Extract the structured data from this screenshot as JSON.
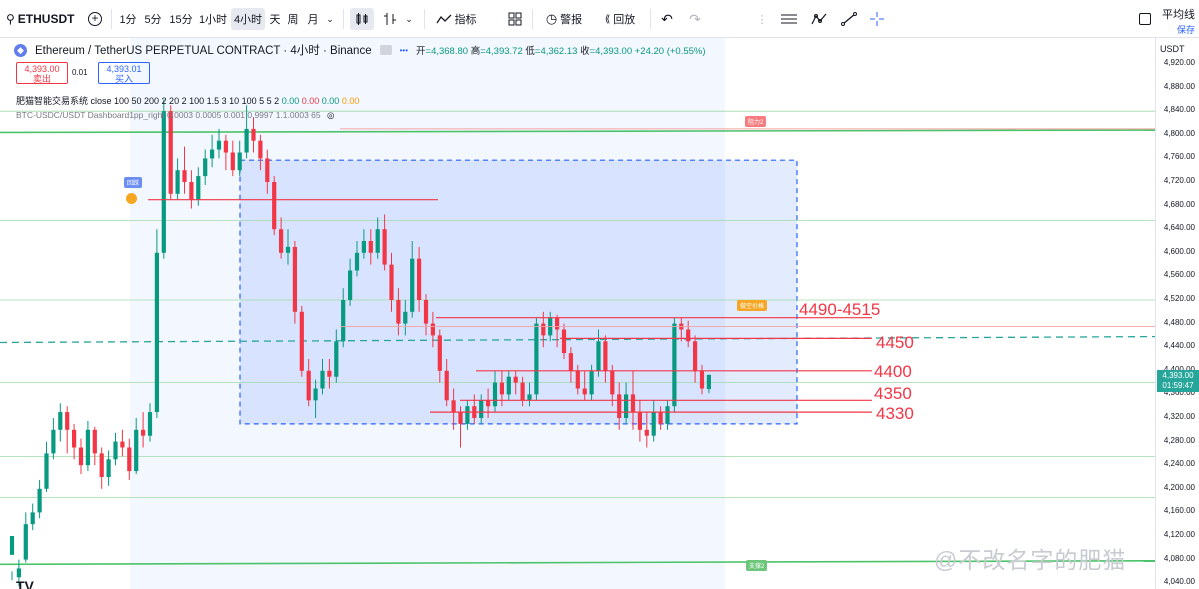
{
  "toolbar": {
    "symbol": "ETHUSDT",
    "intervals": [
      "1分",
      "5分",
      "15分",
      "1小时",
      "4小时",
      "天",
      "周",
      "月"
    ],
    "active_interval": "4小时",
    "indicators_label": "指标",
    "alert_label": "警报",
    "replay_label": "回放",
    "avg_line_label": "平均线",
    "save_label": "保存"
  },
  "legend": {
    "title": "Ethereum / TetherUS PERPETUAL CONTRACT · 4小时 · Binance",
    "open_label": "开",
    "open": "=4,368.80",
    "high_label": "高",
    "high": "=4,393.72",
    "low_label": "低",
    "low": "=4,362.13",
    "close_label": "收",
    "close": "=4,393.00",
    "change": "+24.20 (+0.55%)"
  },
  "trade": {
    "sell_price": "4,393.00",
    "sell_label": "卖出",
    "spread": "0.01",
    "buy_price": "4,393.01",
    "buy_label": "买入"
  },
  "indicator1": {
    "text": "肥猫智能交易系统 close 100 50 200 2 20 2 100 1.5 3 10 100 5 5 2",
    "v1": "0.00",
    "v2": "0.00",
    "v3": "0.00",
    "v4": "0.00"
  },
  "indicator2": {
    "text": "BTC-USDC/USDT Dashboard1pp_right 0.0003 0.0005 0.001 0.9997 1.1.0003 65"
  },
  "levels": [
    "4490-4515",
    "4450",
    "4400",
    "4350",
    "4330"
  ],
  "tags": {
    "resistance": "阻力2",
    "short": "做空价格",
    "support": "支撑2",
    "rebound": "回踩"
  },
  "price_axis": {
    "unit": "USDT",
    "ticks": [
      "4,920.00",
      "4,880.00",
      "4,840.00",
      "4,800.00",
      "4,760.00",
      "4,720.00",
      "4,680.00",
      "4,640.00",
      "4,600.00",
      "4,560.00",
      "4,520.00",
      "4,480.00",
      "4,440.00",
      "4,400.00",
      "4,360.00",
      "4,320.00",
      "4,280.00",
      "4,240.00",
      "4,200.00",
      "4,160.00",
      "4,120.00",
      "4,080.00",
      "4,040.00"
    ],
    "current_price": "4,393.00",
    "countdown": "01:59:47"
  },
  "watermark": "@不改名字的肥猫",
  "logo": "TV",
  "colors": {
    "up": "#089981",
    "down": "#f23645",
    "box": "#2962ff",
    "accent": "#2962ff"
  },
  "candles": [
    [
      4088,
      4120,
      4060,
      4045
    ],
    [
      4050,
      4065,
      4080,
      4035
    ],
    [
      4080,
      4140,
      4160,
      4075
    ],
    [
      4140,
      4160,
      4175,
      4130
    ],
    [
      4160,
      4200,
      4215,
      4150
    ],
    [
      4200,
      4260,
      4280,
      4195
    ],
    [
      4260,
      4300,
      4320,
      4250
    ],
    [
      4300,
      4330,
      4345,
      4280
    ],
    [
      4330,
      4300,
      4340,
      4260
    ],
    [
      4300,
      4270,
      4310,
      4250
    ],
    [
      4270,
      4240,
      4285,
      4225
    ],
    [
      4240,
      4300,
      4315,
      4230
    ],
    [
      4300,
      4260,
      4305,
      4240
    ],
    [
      4260,
      4220,
      4270,
      4200
    ],
    [
      4220,
      4250,
      4265,
      4205
    ],
    [
      4250,
      4280,
      4295,
      4240
    ],
    [
      4280,
      4270,
      4300,
      4255
    ],
    [
      4270,
      4230,
      4285,
      4215
    ],
    [
      4230,
      4300,
      4320,
      4225
    ],
    [
      4300,
      4290,
      4330,
      4270
    ],
    [
      4290,
      4330,
      4345,
      4280
    ],
    [
      4330,
      4600,
      4640,
      4320
    ],
    [
      4600,
      4840,
      4860,
      4590
    ],
    [
      4840,
      4700,
      4850,
      4690
    ],
    [
      4700,
      4740,
      4760,
      4690
    ],
    [
      4740,
      4720,
      4780,
      4700
    ],
    [
      4720,
      4690,
      4740,
      4675
    ],
    [
      4690,
      4730,
      4745,
      4680
    ],
    [
      4730,
      4760,
      4775,
      4715
    ],
    [
      4760,
      4775,
      4800,
      4745
    ],
    [
      4775,
      4790,
      4810,
      4760
    ],
    [
      4790,
      4770,
      4800,
      4740
    ],
    [
      4770,
      4740,
      4790,
      4730
    ],
    [
      4740,
      4770,
      4790,
      4730
    ],
    [
      4770,
      4810,
      4850,
      4760
    ],
    [
      4810,
      4790,
      4830,
      4770
    ],
    [
      4790,
      4760,
      4800,
      4740
    ],
    [
      4760,
      4720,
      4775,
      4700
    ],
    [
      4720,
      4640,
      4730,
      4630
    ],
    [
      4640,
      4600,
      4660,
      4590
    ],
    [
      4600,
      4610,
      4640,
      4580
    ],
    [
      4610,
      4500,
      4620,
      4480
    ],
    [
      4500,
      4400,
      4510,
      4390
    ],
    [
      4400,
      4350,
      4420,
      4340
    ],
    [
      4350,
      4370,
      4385,
      4320
    ],
    [
      4370,
      4400,
      4420,
      4360
    ],
    [
      4400,
      4390,
      4420,
      4370
    ],
    [
      4390,
      4450,
      4470,
      4380
    ],
    [
      4450,
      4520,
      4540,
      4440
    ],
    [
      4520,
      4570,
      4590,
      4510
    ],
    [
      4570,
      4600,
      4620,
      4560
    ],
    [
      4600,
      4620,
      4640,
      4590
    ],
    [
      4620,
      4600,
      4640,
      4580
    ],
    [
      4600,
      4640,
      4660,
      4590
    ],
    [
      4640,
      4580,
      4665,
      4570
    ],
    [
      4580,
      4520,
      4600,
      4500
    ],
    [
      4520,
      4480,
      4540,
      4460
    ],
    [
      4480,
      4500,
      4520,
      4460
    ],
    [
      4500,
      4590,
      4620,
      4490
    ],
    [
      4590,
      4520,
      4610,
      4500
    ],
    [
      4520,
      4480,
      4530,
      4460
    ],
    [
      4480,
      4460,
      4500,
      4440
    ],
    [
      4460,
      4400,
      4470,
      4380
    ],
    [
      4400,
      4350,
      4420,
      4340
    ],
    [
      4350,
      4330,
      4370,
      4300
    ],
    [
      4330,
      4310,
      4340,
      4270
    ],
    [
      4310,
      4340,
      4350,
      4300
    ],
    [
      4340,
      4320,
      4360,
      4310
    ],
    [
      4320,
      4350,
      4360,
      4310
    ],
    [
      4350,
      4340,
      4370,
      4320
    ],
    [
      4340,
      4380,
      4400,
      4330
    ],
    [
      4380,
      4360,
      4400,
      4340
    ],
    [
      4360,
      4390,
      4400,
      4350
    ],
    [
      4390,
      4380,
      4400,
      4360
    ],
    [
      4380,
      4350,
      4390,
      4340
    ],
    [
      4350,
      4360,
      4380,
      4340
    ],
    [
      4360,
      4480,
      4490,
      4350
    ],
    [
      4480,
      4460,
      4500,
      4440
    ],
    [
      4460,
      4490,
      4500,
      4450
    ],
    [
      4490,
      4470,
      4495,
      4440
    ],
    [
      4470,
      4430,
      4480,
      4420
    ],
    [
      4430,
      4400,
      4440,
      4380
    ],
    [
      4400,
      4370,
      4410,
      4360
    ],
    [
      4370,
      4360,
      4400,
      4350
    ],
    [
      4360,
      4400,
      4410,
      4350
    ],
    [
      4400,
      4450,
      4470,
      4390
    ],
    [
      4450,
      4400,
      4460,
      4380
    ],
    [
      4400,
      4360,
      4410,
      4340
    ],
    [
      4360,
      4320,
      4380,
      4300
    ],
    [
      4320,
      4360,
      4380,
      4310
    ],
    [
      4360,
      4330,
      4400,
      4300
    ],
    [
      4330,
      4300,
      4350,
      4280
    ],
    [
      4300,
      4290,
      4330,
      4270
    ],
    [
      4290,
      4330,
      4350,
      4280
    ],
    [
      4330,
      4310,
      4340,
      4300
    ],
    [
      4310,
      4340,
      4350,
      4300
    ],
    [
      4340,
      4480,
      4490,
      4330
    ],
    [
      4480,
      4470,
      4490,
      4450
    ],
    [
      4470,
      4450,
      4485,
      4440
    ],
    [
      4450,
      4400,
      4460,
      4380
    ],
    [
      4400,
      4370,
      4410,
      4360
    ],
    [
      4369,
      4393,
      4394,
      4362
    ]
  ]
}
